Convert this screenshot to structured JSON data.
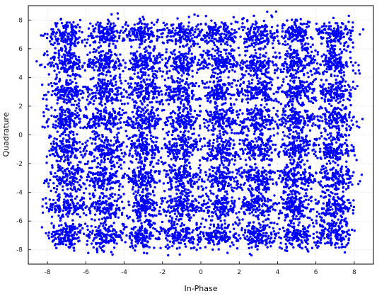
{
  "chart_data": {
    "type": "scatter",
    "title": "",
    "xlabel": "In-Phase",
    "ylabel": "Quadrature",
    "xlim": [
      -9,
      9
    ],
    "ylim": [
      -9,
      9
    ],
    "x_ticks": [
      -8,
      -6,
      -4,
      -2,
      0,
      2,
      4,
      6,
      8
    ],
    "y_ticks": [
      -8,
      -6,
      -4,
      -2,
      0,
      2,
      4,
      6,
      8
    ],
    "grid": true,
    "legend": "none",
    "series": [
      {
        "marker_color": "#0000ff",
        "description_levels_x": [
          -7,
          -5,
          -3,
          -1,
          1,
          3,
          5,
          7
        ],
        "description_levels_y": [
          -7,
          -5,
          -3,
          -1,
          1,
          3,
          5,
          7
        ],
        "points_per_cluster": 150,
        "noise_std": 0.5
      }
    ]
  }
}
